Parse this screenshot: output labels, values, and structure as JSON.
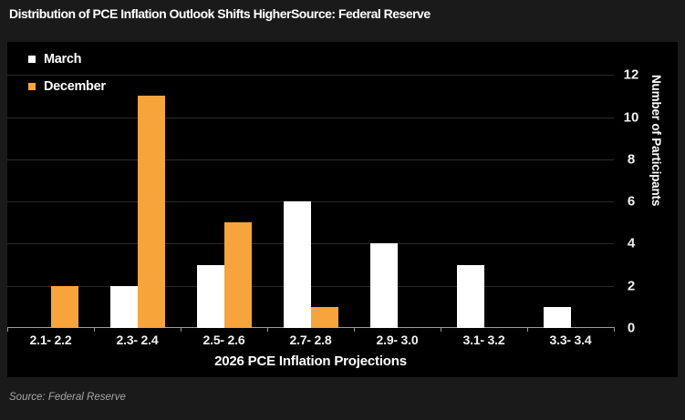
{
  "header": {
    "title": "Distribution of PCE Inflation Outlook Shifts Higher",
    "source_inline": "Source: Federal Reserve"
  },
  "footer": {
    "source": "Source: Federal Reserve"
  },
  "chart_data": {
    "type": "bar",
    "title": "Distribution of PCE Inflation Outlook Shifts Higher",
    "categories": [
      "2.1- 2.2",
      "2.3- 2.4",
      "2.5- 2.6",
      "2.7- 2.8",
      "2.9- 3.0",
      "3.1- 3.2",
      "3.3- 3.4"
    ],
    "series": [
      {
        "name": "March",
        "color": "#ffffff",
        "values": [
          0,
          2,
          3,
          6,
          4,
          3,
          1
        ]
      },
      {
        "name": "December",
        "color": "#f7a43a",
        "values": [
          2,
          11,
          5,
          1,
          0,
          0,
          0
        ]
      }
    ],
    "xlabel": "2026 PCE Inflation Projections",
    "ylabel": "Number of Participants",
    "yticks": [
      0,
      2,
      4,
      6,
      8,
      10,
      12
    ],
    "ylim": [
      0,
      13.5
    ],
    "grid": true,
    "y_axis_side": "right",
    "legend_position": "top-left",
    "colors": {
      "plot_background": "#000000",
      "frame_background": "#1a1a1a",
      "gridline": "#2a2a2a",
      "axis_line": "#9a9a9a",
      "text": "#ffffff",
      "source_text": "#a6a6a6"
    }
  }
}
